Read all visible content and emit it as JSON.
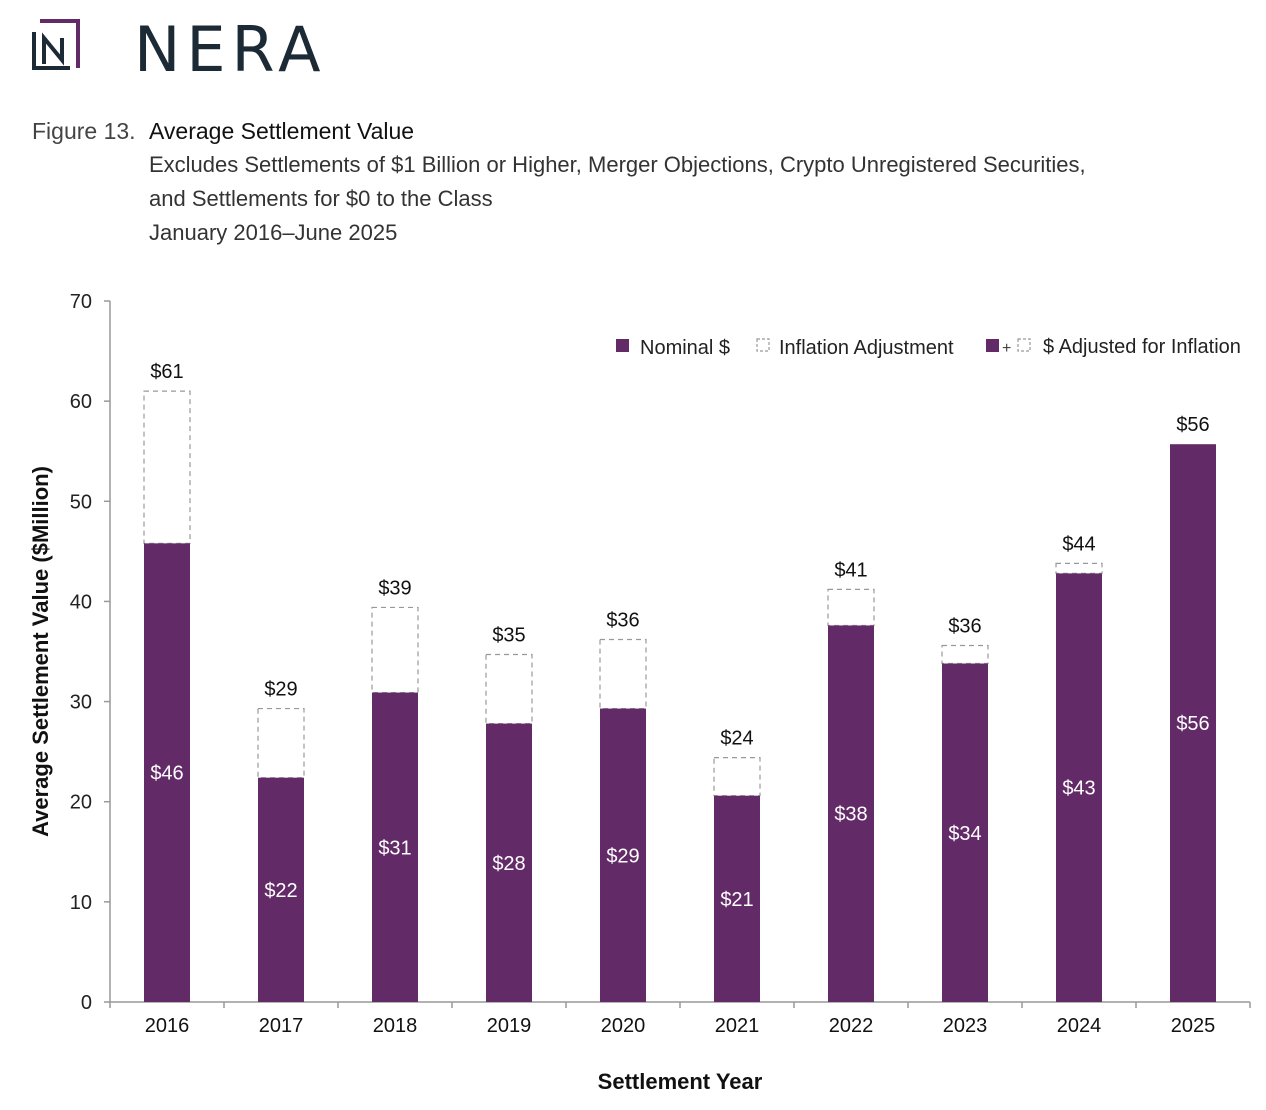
{
  "brand": {
    "name": "NERA",
    "accent": "#632a68"
  },
  "figure": {
    "label": "Figure 13.",
    "title": "Average Settlement Value",
    "subtitle_lines": [
      "Excludes Settlements of $1 Billion or Higher, Merger Objections, Crypto Unregistered Securities,",
      "and Settlements for $0 to the Class",
      "January 2016–June 2025"
    ]
  },
  "chart_data": {
    "type": "bar",
    "stacked": true,
    "categories": [
      "2016",
      "2017",
      "2018",
      "2019",
      "2020",
      "2021",
      "2022",
      "2023",
      "2024",
      "2025"
    ],
    "series": [
      {
        "name": "Nominal $",
        "values": [
          45.8,
          22.4,
          30.9,
          27.8,
          29.3,
          20.6,
          37.6,
          33.8,
          42.8,
          55.7
        ],
        "labels": [
          "$46",
          "$22",
          "$31",
          "$28",
          "$29",
          "$21",
          "$38",
          "$34",
          "$43",
          "$56"
        ],
        "color": "#632a68"
      },
      {
        "name": "Inflation Adjustment",
        "values": [
          15.2,
          6.9,
          8.5,
          6.9,
          6.9,
          3.8,
          3.6,
          1.8,
          1.0,
          0.0
        ],
        "style": "dashed-outline"
      }
    ],
    "totals": {
      "name": "$ Adjusted for Inflation",
      "values": [
        61.0,
        29.3,
        39.4,
        34.7,
        36.2,
        24.4,
        41.2,
        35.6,
        43.8,
        55.7
      ],
      "labels": [
        "$61",
        "$29",
        "$39",
        "$35",
        "$36",
        "$24",
        "$41",
        "$36",
        "$44",
        "$56"
      ]
    },
    "ylabel": "Average Settlement Value ($Million)",
    "xlabel": "Settlement Year",
    "ylim": [
      0,
      70
    ],
    "yticks": [
      0,
      10,
      20,
      30,
      40,
      50,
      60,
      70
    ],
    "grid": false,
    "legend": {
      "placement": "top-right",
      "items": [
        "Nominal $",
        "Inflation Adjustment",
        "$ Adjusted for Inflation"
      ]
    }
  }
}
